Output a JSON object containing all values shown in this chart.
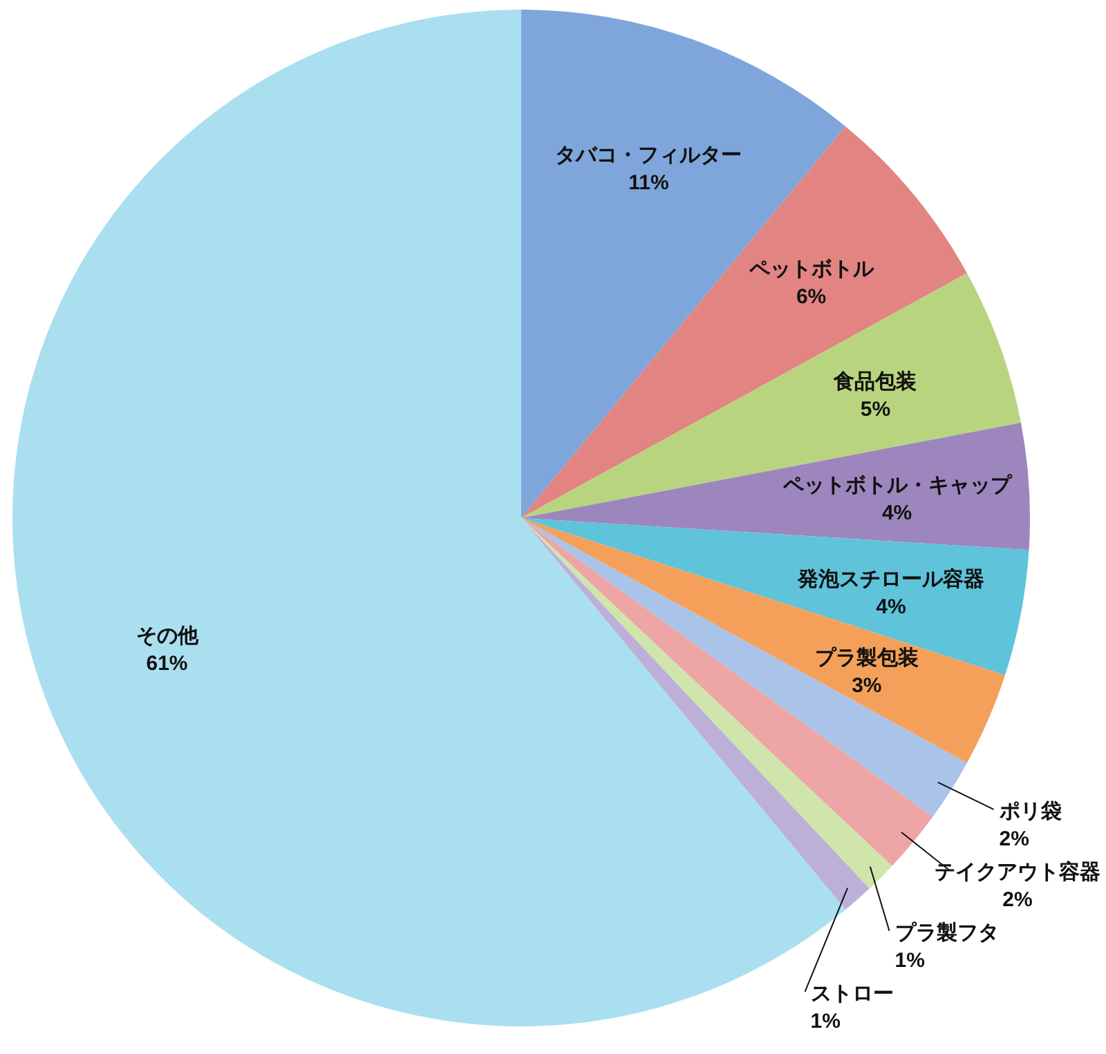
{
  "chart_data": {
    "type": "pie",
    "categories": [
      "タバコ・フィルター",
      "ペットボトル",
      "食品包装",
      "ペットボトル・キャップ",
      "発泡スチロール容器",
      "プラ製包装",
      "ポリ袋",
      "テイクアウト容器",
      "プラ製フタ",
      "ストロー",
      "その他"
    ],
    "values": [
      11,
      6,
      5,
      4,
      4,
      3,
      2,
      2,
      1,
      1,
      61
    ],
    "colors": [
      "#7ea6db",
      "#e28582",
      "#b9d47e",
      "#9d86bd",
      "#5fc3da",
      "#f5a05a",
      "#aac3e9",
      "#eea5a5",
      "#cfe5ab",
      "#bdb0d8",
      "#aadff0"
    ],
    "value_labels": [
      "11%",
      "6%",
      "5%",
      "4%",
      "4%",
      "3%",
      "2%",
      "2%",
      "1%",
      "1%",
      "61%"
    ]
  }
}
